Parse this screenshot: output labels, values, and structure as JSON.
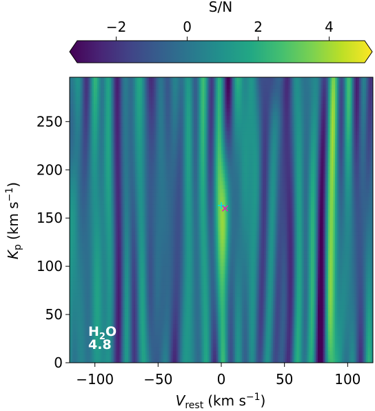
{
  "chart_data": {
    "type": "heatmap",
    "colorbar": {
      "label": "S/N",
      "range": [
        -3.1,
        5.0
      ],
      "ticks": [
        {
          "value": -2,
          "label": "−2"
        },
        {
          "value": 0,
          "label": "0"
        },
        {
          "value": 2,
          "label": "2"
        },
        {
          "value": 4,
          "label": "4"
        }
      ],
      "colormap": "viridis",
      "extend": "both",
      "position": "top"
    },
    "xaxis": {
      "label_main": "V",
      "label_sub": "rest",
      "label_units": "(km s",
      "label_exp": "−1",
      "label_close": ")",
      "range": [
        -120,
        120
      ],
      "ticks": [
        {
          "value": -100,
          "label": "−100"
        },
        {
          "value": -50,
          "label": "−50"
        },
        {
          "value": 0,
          "label": "0"
        },
        {
          "value": 50,
          "label": "50"
        },
        {
          "value": 100,
          "label": "100"
        }
      ]
    },
    "yaxis": {
      "label_main": "K",
      "label_sub": "p",
      "label_units": "(km s",
      "label_exp": "−1",
      "label_close": ")",
      "range": [
        0,
        296
      ],
      "ticks": [
        {
          "value": 0,
          "label": "0"
        },
        {
          "value": 50,
          "label": "50"
        },
        {
          "value": 100,
          "label": "100"
        },
        {
          "value": 150,
          "label": "150"
        },
        {
          "value": 200,
          "label": "200"
        },
        {
          "value": 250,
          "label": "250"
        }
      ]
    },
    "annotation": {
      "species_main": "H",
      "species_sub": "2",
      "species_end": "O",
      "value": "4.8"
    },
    "markers": [
      {
        "name": "expected",
        "symbol": "plus",
        "x": 0,
        "y": 163,
        "color": "#00e5e5"
      },
      {
        "name": "peak",
        "symbol": "cross",
        "x": 3,
        "y": 160,
        "color": "#e020c0"
      }
    ],
    "peak": {
      "x": 3,
      "y": 160,
      "value": 4.8
    }
  }
}
